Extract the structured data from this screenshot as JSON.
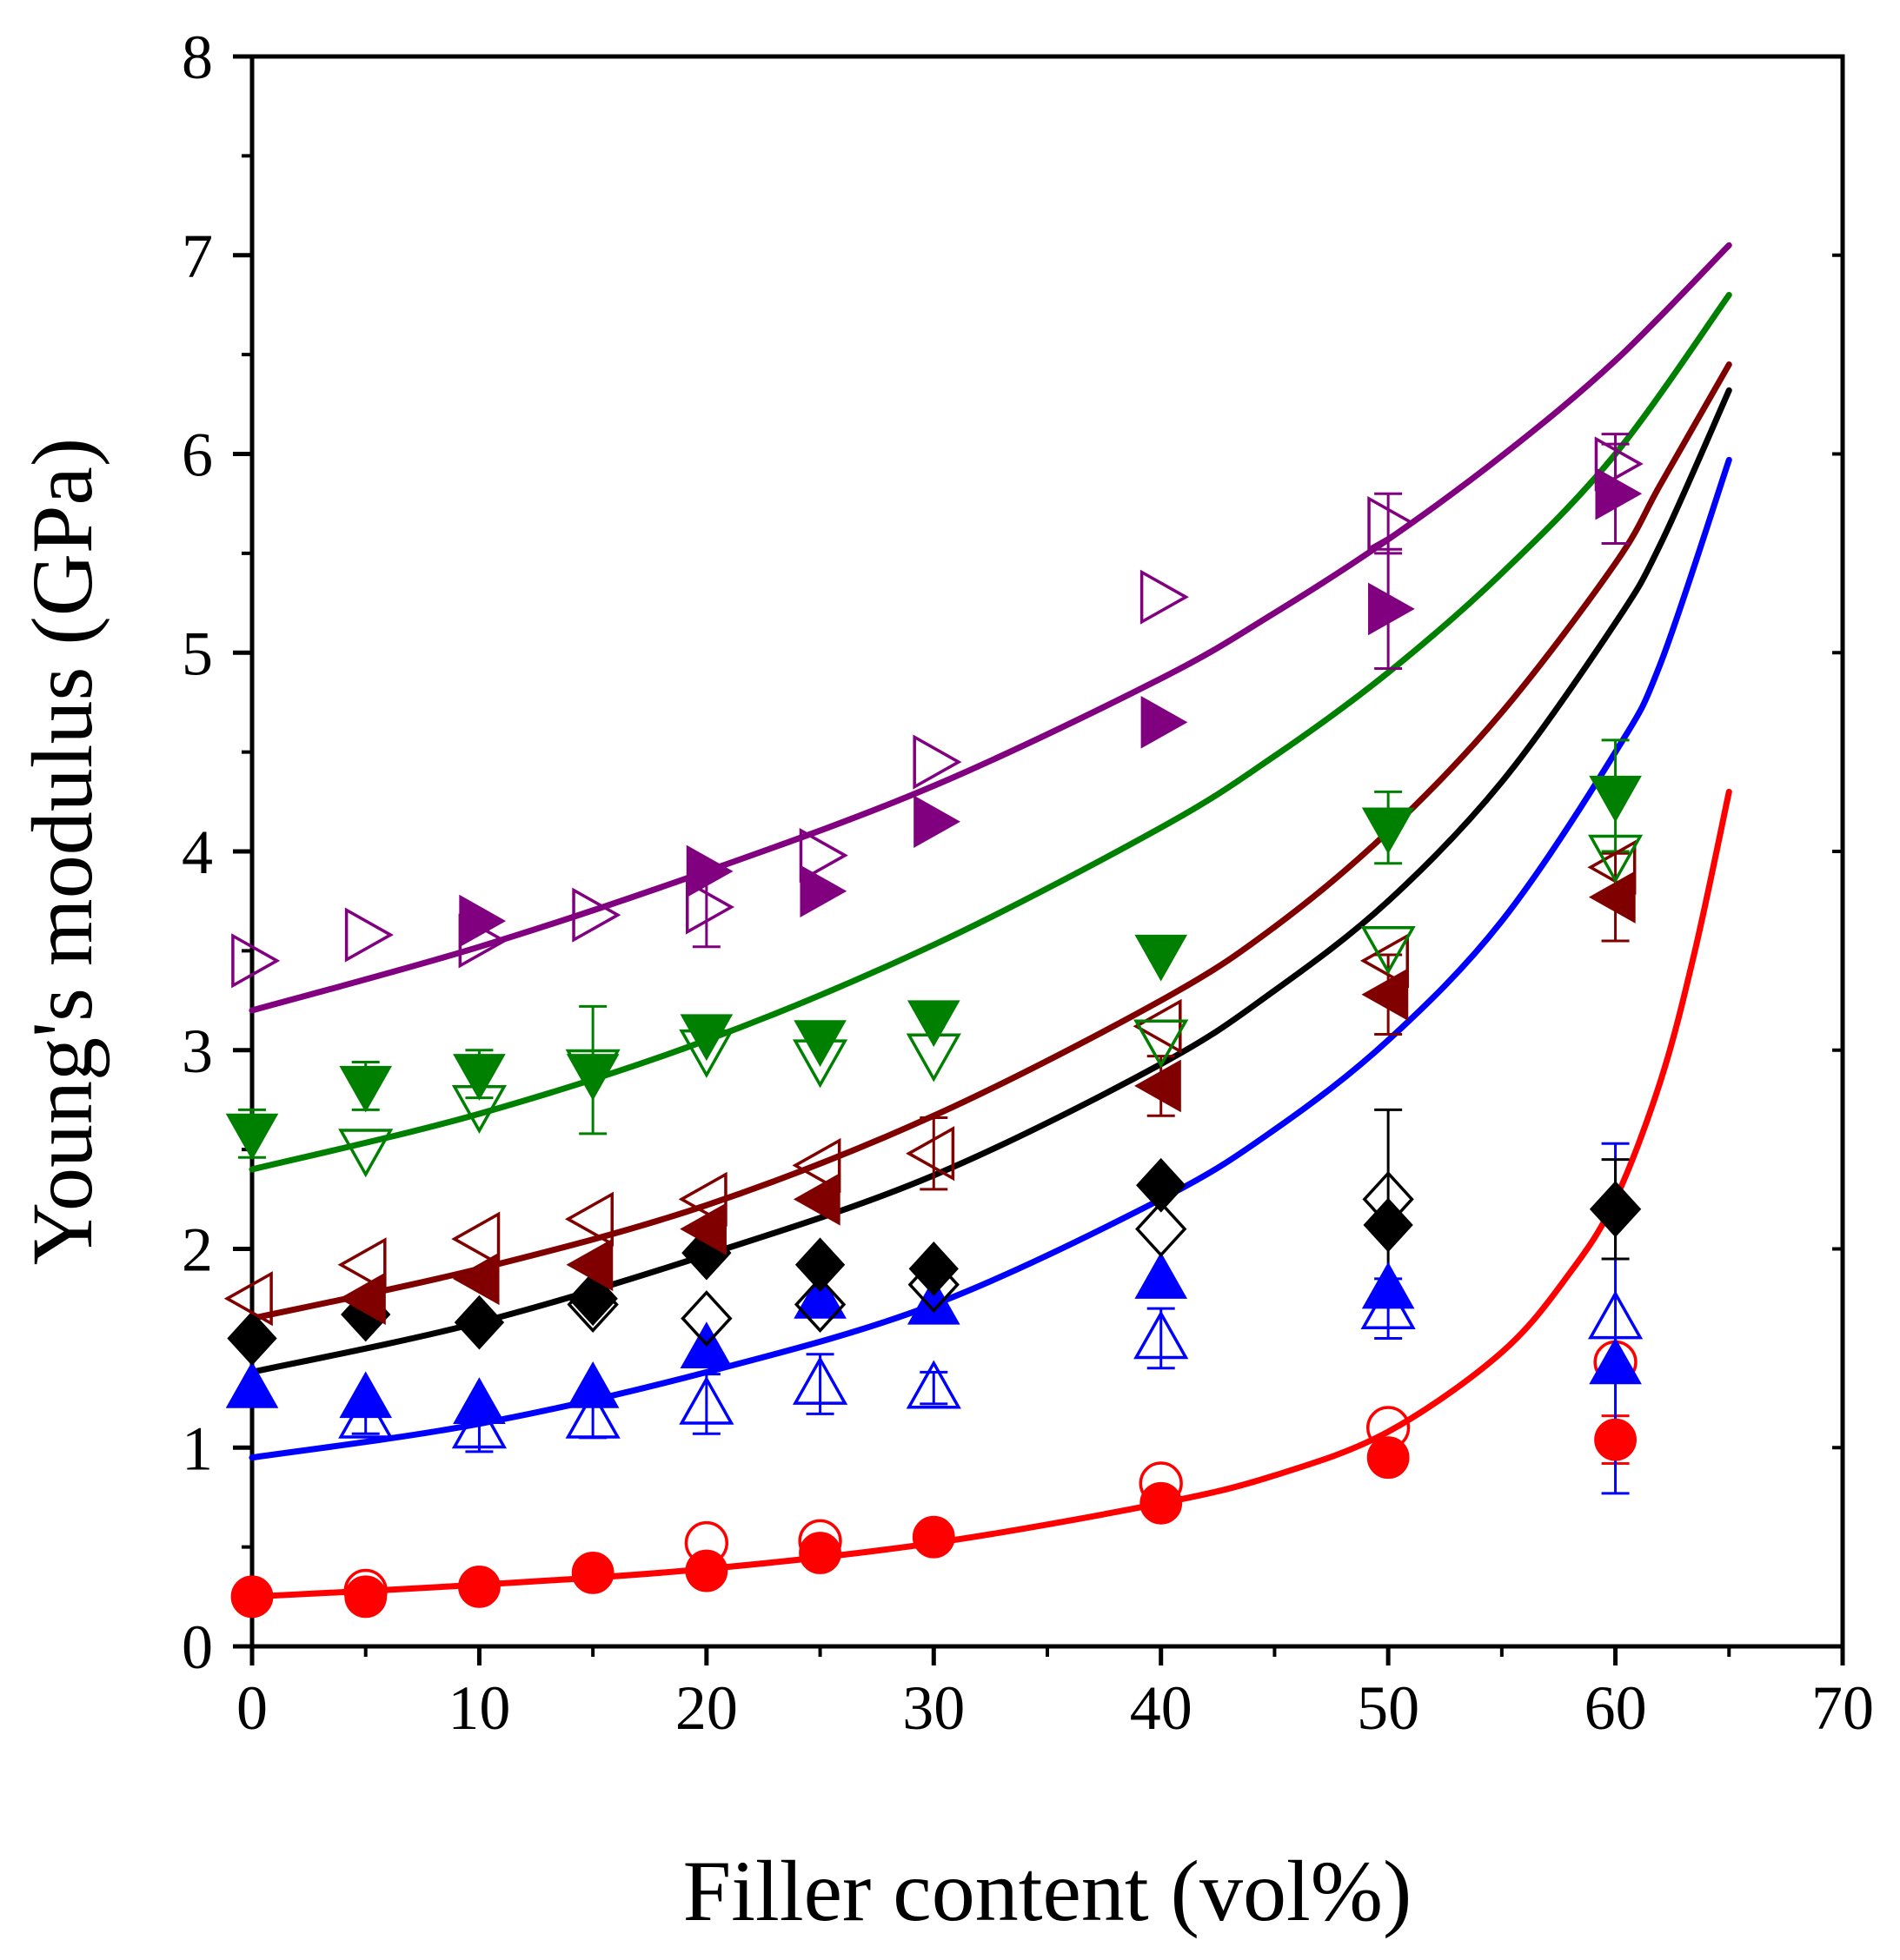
{
  "chart_data": {
    "type": "scatter",
    "title": "",
    "xlabel": "Filler content (vol%)",
    "ylabel": "Young's modulus (GPa)",
    "xlim": [
      0,
      70
    ],
    "ylim": [
      0,
      8
    ],
    "xticks": [
      0,
      10,
      20,
      30,
      40,
      50,
      60,
      70
    ],
    "yticks": [
      0,
      1,
      2,
      3,
      4,
      5,
      6,
      7,
      8
    ],
    "x_tick_labels": [
      "0",
      "10",
      "20",
      "30",
      "40",
      "50",
      "60",
      "70"
    ],
    "y_tick_labels": [
      "0",
      "1",
      "2",
      "3",
      "4",
      "5",
      "6",
      "7",
      "8"
    ],
    "series": [
      {
        "name": "red filled circles",
        "color": "#ff0000",
        "marker": "circle",
        "filled": true,
        "points": [
          {
            "x": 0,
            "y": 0.25
          },
          {
            "x": 5,
            "y": 0.25
          },
          {
            "x": 10,
            "y": 0.3
          },
          {
            "x": 15,
            "y": 0.37
          },
          {
            "x": 20,
            "y": 0.38
          },
          {
            "x": 25,
            "y": 0.47
          },
          {
            "x": 30,
            "y": 0.55
          },
          {
            "x": 40,
            "y": 0.72
          },
          {
            "x": 50,
            "y": 0.95
          },
          {
            "x": 60,
            "y": 1.04,
            "err": 0.12
          }
        ]
      },
      {
        "name": "red open circles",
        "color": "#ff0000",
        "marker": "circle",
        "filled": false,
        "points": [
          {
            "x": 5,
            "y": 0.28
          },
          {
            "x": 20,
            "y": 0.52
          },
          {
            "x": 25,
            "y": 0.53
          },
          {
            "x": 40,
            "y": 0.82
          },
          {
            "x": 50,
            "y": 1.1
          },
          {
            "x": 60,
            "y": 1.43
          }
        ]
      },
      {
        "name": "red fit",
        "color": "#ff0000",
        "marker": "line",
        "points": [
          {
            "x": 0,
            "y": 0.25
          },
          {
            "x": 10,
            "y": 0.31
          },
          {
            "x": 20,
            "y": 0.39
          },
          {
            "x": 30,
            "y": 0.52
          },
          {
            "x": 40,
            "y": 0.72
          },
          {
            "x": 45,
            "y": 0.86
          },
          {
            "x": 50,
            "y": 1.08
          },
          {
            "x": 55,
            "y": 1.48
          },
          {
            "x": 58,
            "y": 1.88
          },
          {
            "x": 60,
            "y": 2.25
          },
          {
            "x": 62,
            "y": 2.85
          },
          {
            "x": 63.5,
            "y": 3.5
          },
          {
            "x": 65,
            "y": 4.3
          }
        ]
      },
      {
        "name": "blue filled triangles",
        "color": "#0000ff",
        "marker": "triangle-up",
        "filled": true,
        "points": [
          {
            "x": 0,
            "y": 1.3
          },
          {
            "x": 5,
            "y": 1.25
          },
          {
            "x": 10,
            "y": 1.22
          },
          {
            "x": 15,
            "y": 1.3
          },
          {
            "x": 20,
            "y": 1.5
          },
          {
            "x": 25,
            "y": 1.75
          },
          {
            "x": 30,
            "y": 1.72
          },
          {
            "x": 40,
            "y": 1.85
          },
          {
            "x": 50,
            "y": 1.8
          },
          {
            "x": 60,
            "y": 1.42
          }
        ]
      },
      {
        "name": "blue open triangles",
        "color": "#0000ff",
        "marker": "triangle-up",
        "filled": false,
        "points": [
          {
            "x": 5,
            "y": 1.15,
            "err": 0.08
          },
          {
            "x": 10,
            "y": 1.1,
            "err": 0.12
          },
          {
            "x": 15,
            "y": 1.15,
            "err": 0.1
          },
          {
            "x": 20,
            "y": 1.22,
            "err": 0.15
          },
          {
            "x": 25,
            "y": 1.32,
            "err": 0.15
          },
          {
            "x": 30,
            "y": 1.3,
            "err": 0.08
          },
          {
            "x": 40,
            "y": 1.55,
            "err": 0.15
          },
          {
            "x": 50,
            "y": 1.7,
            "err": 0.15
          },
          {
            "x": 60,
            "y": 1.65,
            "err": 0.88
          }
        ]
      },
      {
        "name": "blue fit",
        "color": "#0000ff",
        "marker": "line",
        "points": [
          {
            "x": 0,
            "y": 0.95
          },
          {
            "x": 10,
            "y": 1.12
          },
          {
            "x": 20,
            "y": 1.38
          },
          {
            "x": 30,
            "y": 1.72
          },
          {
            "x": 40,
            "y": 2.25
          },
          {
            "x": 45,
            "y": 2.6
          },
          {
            "x": 50,
            "y": 3.05
          },
          {
            "x": 55,
            "y": 3.65
          },
          {
            "x": 60,
            "y": 4.5
          },
          {
            "x": 62,
            "y": 4.95
          },
          {
            "x": 65,
            "y": 5.97
          }
        ]
      },
      {
        "name": "black filled diamonds",
        "color": "#000000",
        "marker": "diamond",
        "filled": true,
        "points": [
          {
            "x": 0,
            "y": 1.55
          },
          {
            "x": 5,
            "y": 1.67
          },
          {
            "x": 10,
            "y": 1.63
          },
          {
            "x": 15,
            "y": 1.75
          },
          {
            "x": 20,
            "y": 1.98
          },
          {
            "x": 25,
            "y": 1.92
          },
          {
            "x": 30,
            "y": 1.9
          },
          {
            "x": 40,
            "y": 2.32
          },
          {
            "x": 50,
            "y": 2.12
          },
          {
            "x": 60,
            "y": 2.2
          }
        ]
      },
      {
        "name": "black open diamonds",
        "color": "#000000",
        "marker": "diamond",
        "filled": false,
        "points": [
          {
            "x": 15,
            "y": 1.72
          },
          {
            "x": 20,
            "y": 1.65
          },
          {
            "x": 25,
            "y": 1.72
          },
          {
            "x": 30,
            "y": 1.82
          },
          {
            "x": 40,
            "y": 2.1
          },
          {
            "x": 50,
            "y": 2.25,
            "err": 0.45
          },
          {
            "x": 60,
            "y": 2.2,
            "err": 0.25
          }
        ]
      },
      {
        "name": "black fit",
        "color": "#000000",
        "marker": "line",
        "points": [
          {
            "x": 0,
            "y": 1.38
          },
          {
            "x": 10,
            "y": 1.63
          },
          {
            "x": 20,
            "y": 1.97
          },
          {
            "x": 30,
            "y": 2.37
          },
          {
            "x": 40,
            "y": 2.93
          },
          {
            "x": 45,
            "y": 3.3
          },
          {
            "x": 50,
            "y": 3.75
          },
          {
            "x": 55,
            "y": 4.35
          },
          {
            "x": 60,
            "y": 5.15
          },
          {
            "x": 62,
            "y": 5.55
          },
          {
            "x": 65,
            "y": 6.32
          }
        ]
      },
      {
        "name": "dark red filled left triangles",
        "color": "#800000",
        "marker": "triangle-left",
        "filled": true,
        "points": [
          {
            "x": 5,
            "y": 1.75
          },
          {
            "x": 10,
            "y": 1.85
          },
          {
            "x": 15,
            "y": 1.92
          },
          {
            "x": 20,
            "y": 2.1
          },
          {
            "x": 25,
            "y": 2.25
          },
          {
            "x": 40,
            "y": 2.82,
            "err": 0.15
          },
          {
            "x": 50,
            "y": 3.28,
            "err": 0.2
          },
          {
            "x": 60,
            "y": 3.77,
            "err": 0.22
          }
        ]
      },
      {
        "name": "dark red open left triangles",
        "color": "#800000",
        "marker": "triangle-left",
        "filled": false,
        "points": [
          {
            "x": 0,
            "y": 1.75
          },
          {
            "x": 5,
            "y": 1.92
          },
          {
            "x": 10,
            "y": 2.05
          },
          {
            "x": 15,
            "y": 2.15
          },
          {
            "x": 20,
            "y": 2.25
          },
          {
            "x": 25,
            "y": 2.42
          },
          {
            "x": 30,
            "y": 2.48,
            "err": 0.18
          },
          {
            "x": 40,
            "y": 3.12
          },
          {
            "x": 50,
            "y": 3.45
          },
          {
            "x": 60,
            "y": 3.92
          }
        ]
      },
      {
        "name": "dark red fit",
        "color": "#800000",
        "marker": "line",
        "points": [
          {
            "x": 0,
            "y": 1.65
          },
          {
            "x": 10,
            "y": 1.9
          },
          {
            "x": 20,
            "y": 2.22
          },
          {
            "x": 30,
            "y": 2.67
          },
          {
            "x": 40,
            "y": 3.25
          },
          {
            "x": 45,
            "y": 3.62
          },
          {
            "x": 50,
            "y": 4.1
          },
          {
            "x": 55,
            "y": 4.7
          },
          {
            "x": 60,
            "y": 5.45
          },
          {
            "x": 62,
            "y": 5.85
          },
          {
            "x": 65,
            "y": 6.45
          }
        ]
      },
      {
        "name": "green filled down triangles",
        "color": "#008000",
        "marker": "triangle-down",
        "filled": true,
        "points": [
          {
            "x": 0,
            "y": 2.58,
            "err": 0.12
          },
          {
            "x": 5,
            "y": 2.82,
            "err": 0.12
          },
          {
            "x": 10,
            "y": 2.88,
            "err": 0.12
          },
          {
            "x": 15,
            "y": 2.88
          },
          {
            "x": 20,
            "y": 3.08
          },
          {
            "x": 25,
            "y": 3.05
          },
          {
            "x": 30,
            "y": 3.15
          },
          {
            "x": 40,
            "y": 3.48
          },
          {
            "x": 50,
            "y": 4.12,
            "err": 0.18
          },
          {
            "x": 60,
            "y": 4.28,
            "err": 0.28
          }
        ]
      },
      {
        "name": "green open down triangles",
        "color": "#008000",
        "marker": "triangle-down",
        "filled": false,
        "points": [
          {
            "x": 5,
            "y": 2.5
          },
          {
            "x": 10,
            "y": 2.72
          },
          {
            "x": 15,
            "y": 2.9,
            "err": 0.32
          },
          {
            "x": 20,
            "y": 3.0
          },
          {
            "x": 25,
            "y": 2.95
          },
          {
            "x": 30,
            "y": 2.98
          },
          {
            "x": 40,
            "y": 3.05
          },
          {
            "x": 50,
            "y": 3.52
          },
          {
            "x": 60,
            "y": 3.98
          }
        ]
      },
      {
        "name": "green fit",
        "color": "#008000",
        "marker": "line",
        "points": [
          {
            "x": 0,
            "y": 2.4
          },
          {
            "x": 10,
            "y": 2.68
          },
          {
            "x": 20,
            "y": 3.05
          },
          {
            "x": 30,
            "y": 3.53
          },
          {
            "x": 40,
            "y": 4.12
          },
          {
            "x": 45,
            "y": 4.48
          },
          {
            "x": 50,
            "y": 4.9
          },
          {
            "x": 55,
            "y": 5.4
          },
          {
            "x": 60,
            "y": 6.0
          },
          {
            "x": 65,
            "y": 6.8
          }
        ]
      },
      {
        "name": "purple filled right triangles",
        "color": "#800080",
        "marker": "triangle-right",
        "filled": true,
        "points": [
          {
            "x": 10,
            "y": 3.65
          },
          {
            "x": 20,
            "y": 3.9
          },
          {
            "x": 25,
            "y": 3.8
          },
          {
            "x": 30,
            "y": 4.15
          },
          {
            "x": 40,
            "y": 4.65
          },
          {
            "x": 50,
            "y": 5.22,
            "err": 0.3
          },
          {
            "x": 60,
            "y": 5.8,
            "err": 0.25
          }
        ]
      },
      {
        "name": "purple open right triangles",
        "color": "#800080",
        "marker": "triangle-right",
        "filled": false,
        "points": [
          {
            "x": 0,
            "y": 3.45
          },
          {
            "x": 5,
            "y": 3.58
          },
          {
            "x": 10,
            "y": 3.55
          },
          {
            "x": 15,
            "y": 3.68
          },
          {
            "x": 20,
            "y": 3.72,
            "err": 0.2
          },
          {
            "x": 25,
            "y": 3.98
          },
          {
            "x": 30,
            "y": 4.45
          },
          {
            "x": 40,
            "y": 5.28
          },
          {
            "x": 50,
            "y": 5.65,
            "err": 0.15
          },
          {
            "x": 60,
            "y": 5.95,
            "err": 0.15
          }
        ]
      },
      {
        "name": "purple fit",
        "color": "#800080",
        "marker": "line",
        "points": [
          {
            "x": 0,
            "y": 3.2
          },
          {
            "x": 10,
            "y": 3.52
          },
          {
            "x": 20,
            "y": 3.9
          },
          {
            "x": 30,
            "y": 4.33
          },
          {
            "x": 40,
            "y": 4.87
          },
          {
            "x": 45,
            "y": 5.2
          },
          {
            "x": 50,
            "y": 5.57
          },
          {
            "x": 55,
            "y": 5.99
          },
          {
            "x": 60,
            "y": 6.47
          },
          {
            "x": 65,
            "y": 7.05
          }
        ]
      }
    ]
  }
}
